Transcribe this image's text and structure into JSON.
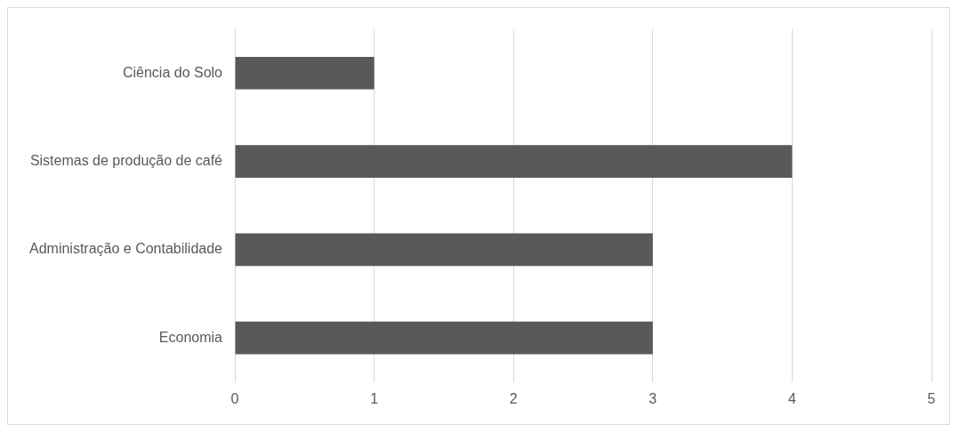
{
  "chart_data": {
    "type": "bar",
    "orientation": "horizontal",
    "categories": [
      "Ciência do Solo",
      "Sistemas de produção de café",
      "Administração e Contabilidade",
      "Economia"
    ],
    "values": [
      1,
      4,
      3,
      3
    ],
    "color": "#595959",
    "xlim": [
      0,
      5
    ],
    "xticks": [
      0,
      1,
      2,
      3,
      4,
      5
    ],
    "grid": "x",
    "legend": false
  }
}
